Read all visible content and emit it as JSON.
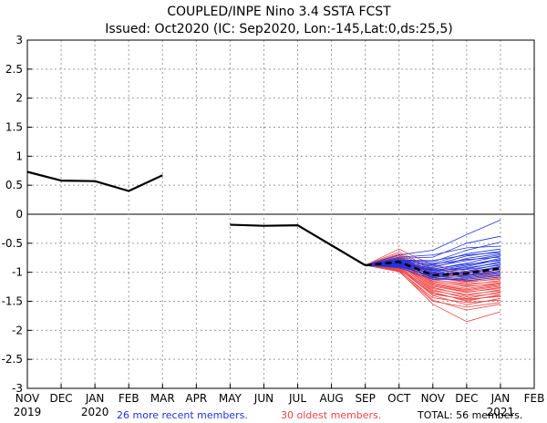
{
  "chart_data": {
    "type": "line",
    "title": "COUPLED/INPE Nino 3.4 SSTA FCST",
    "subtitle": "Issued: Oct2020 (IC: Sep2020, Lon:-145,Lat:0,ds:25,5)",
    "x_labels": [
      "NOV",
      "DEC",
      "JAN",
      "FEB",
      "MAR",
      "APR",
      "MAY",
      "JUN",
      "JUL",
      "AUG",
      "SEP",
      "OCT",
      "NOV",
      "DEC",
      "JAN",
      "FEB"
    ],
    "year_labels": [
      {
        "index": 0,
        "text": "2019"
      },
      {
        "index": 2,
        "text": "2020"
      },
      {
        "index": 14,
        "text": "2021"
      }
    ],
    "y_ticks": [
      "-3",
      "-2.5",
      "-2",
      "-1.5",
      "-1",
      "-0.5",
      "0",
      "0.5",
      "1",
      "1.5",
      "2",
      "2.5",
      "3"
    ],
    "ylim": [
      -3,
      3
    ],
    "grid": true,
    "observed": [
      {
        "name": "segment-1",
        "x": [
          0,
          1,
          2,
          3,
          4
        ],
        "y": [
          0.73,
          0.58,
          0.57,
          0.4,
          0.67
        ]
      },
      {
        "name": "segment-2",
        "x": [
          6,
          7,
          8,
          10
        ],
        "y": [
          -0.18,
          -0.2,
          -0.19,
          -0.88
        ]
      }
    ],
    "forecast_start": {
      "x": 10,
      "y": -0.88
    },
    "recent_members": {
      "label": "26 more recent members.",
      "color": "#2233dd",
      "x": [
        11,
        12,
        13,
        14
      ],
      "members": [
        [
          -0.7,
          -0.62,
          -0.35,
          -0.1
        ],
        [
          -0.76,
          -0.74,
          -0.5,
          -0.38
        ],
        [
          -0.78,
          -0.82,
          -0.62,
          -0.48
        ],
        [
          -0.74,
          -0.7,
          -0.58,
          -0.55
        ],
        [
          -0.8,
          -0.85,
          -0.68,
          -0.6
        ],
        [
          -0.82,
          -0.88,
          -0.72,
          -0.64
        ],
        [
          -0.79,
          -0.8,
          -0.7,
          -0.66
        ],
        [
          -0.84,
          -0.92,
          -0.76,
          -0.68
        ],
        [
          -0.8,
          -0.9,
          -0.8,
          -0.7
        ],
        [
          -0.86,
          -0.95,
          -0.84,
          -0.72
        ],
        [
          -0.78,
          -0.86,
          -0.78,
          -0.74
        ],
        [
          -0.83,
          -0.97,
          -0.88,
          -0.76
        ],
        [
          -0.85,
          -1.0,
          -0.9,
          -0.78
        ],
        [
          -0.81,
          -0.94,
          -0.86,
          -0.8
        ],
        [
          -0.88,
          -1.02,
          -0.94,
          -0.82
        ],
        [
          -0.84,
          -0.98,
          -0.92,
          -0.84
        ],
        [
          -0.86,
          -1.04,
          -0.98,
          -0.86
        ],
        [
          -0.82,
          -0.96,
          -0.95,
          -0.88
        ],
        [
          -0.9,
          -1.06,
          -1.0,
          -0.9
        ],
        [
          -0.87,
          -1.03,
          -1.02,
          -0.92
        ],
        [
          -0.84,
          -1.0,
          -1.05,
          -0.95
        ],
        [
          -0.89,
          -1.08,
          -1.06,
          -0.98
        ],
        [
          -0.91,
          -1.05,
          -1.08,
          -1.0
        ],
        [
          -0.86,
          -1.1,
          -1.1,
          -1.02
        ],
        [
          -0.92,
          -1.12,
          -1.12,
          -1.05
        ],
        [
          -0.88,
          -1.09,
          -1.15,
          -1.08
        ]
      ]
    },
    "oldest_members": {
      "label": "30 oldest members.",
      "color": "#ee4444",
      "x": [
        11,
        12,
        13,
        14
      ],
      "members": [
        [
          -0.6,
          -0.88,
          -0.98,
          -0.92
        ],
        [
          -0.65,
          -0.94,
          -1.04,
          -0.98
        ],
        [
          -0.7,
          -1.0,
          -1.1,
          -1.04
        ],
        [
          -0.72,
          -1.04,
          -1.14,
          -1.08
        ],
        [
          -0.75,
          -1.08,
          -1.18,
          -1.1
        ],
        [
          -0.78,
          -1.12,
          -1.22,
          -1.14
        ],
        [
          -0.8,
          -1.15,
          -1.25,
          -1.18
        ],
        [
          -0.82,
          -1.18,
          -1.28,
          -1.2
        ],
        [
          -0.84,
          -1.2,
          -1.32,
          -1.24
        ],
        [
          -0.86,
          -1.24,
          -1.35,
          -1.26
        ],
        [
          -0.88,
          -1.26,
          -1.4,
          -1.3
        ],
        [
          -0.9,
          -1.3,
          -1.45,
          -1.34
        ],
        [
          -0.92,
          -1.34,
          -1.5,
          -1.38
        ],
        [
          -0.94,
          -1.4,
          -1.56,
          -1.45
        ],
        [
          -0.96,
          -1.48,
          -1.65,
          -1.55
        ],
        [
          -0.98,
          -1.55,
          -1.85,
          -1.68
        ],
        [
          -0.68,
          -0.96,
          -1.0,
          -0.96
        ],
        [
          -0.74,
          -1.02,
          -1.06,
          -1.0
        ],
        [
          -0.77,
          -1.06,
          -1.12,
          -1.06
        ],
        [
          -0.81,
          -1.1,
          -1.16,
          -1.12
        ],
        [
          -0.83,
          -1.13,
          -1.2,
          -1.16
        ],
        [
          -0.85,
          -1.16,
          -1.24,
          -1.2
        ],
        [
          -0.87,
          -1.2,
          -1.3,
          -1.22
        ],
        [
          -0.89,
          -1.22,
          -1.34,
          -1.28
        ],
        [
          -0.91,
          -1.28,
          -1.38,
          -1.32
        ],
        [
          -0.93,
          -1.32,
          -1.42,
          -1.36
        ],
        [
          -0.95,
          -1.36,
          -1.48,
          -1.4
        ],
        [
          -0.97,
          -1.44,
          -1.52,
          -1.48
        ],
        [
          -0.99,
          -1.5,
          -1.6,
          -1.52
        ],
        [
          -0.92,
          -1.38,
          -1.46,
          -1.42
        ]
      ]
    },
    "ensemble_mean": {
      "x": [
        10,
        11,
        12,
        13,
        14
      ],
      "y": [
        -0.88,
        -0.82,
        -1.05,
        -1.02,
        -0.93
      ]
    },
    "total_label": "TOTAL: 56 members."
  }
}
